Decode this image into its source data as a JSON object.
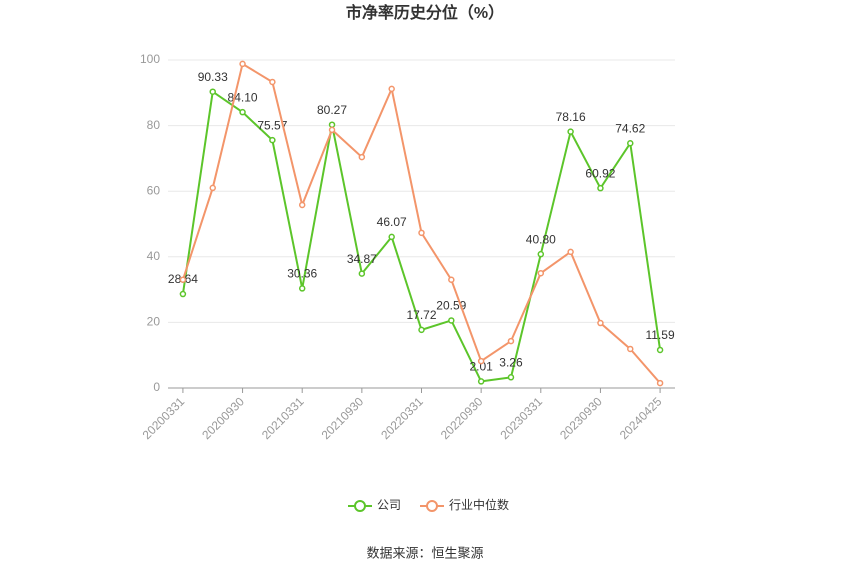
{
  "chart_data": {
    "type": "line",
    "title": "市净率历史分位（%）",
    "categories": [
      "20200331",
      null,
      "20200930",
      null,
      "20210331",
      null,
      "20210930",
      null,
      "20220331",
      null,
      "20220930",
      null,
      "20230331",
      null,
      "20230930",
      null,
      "20240425"
    ],
    "series": [
      {
        "name": "公司",
        "color": "#5cc52a",
        "values": [
          28.64,
          90.33,
          84.1,
          75.57,
          30.36,
          80.27,
          34.87,
          46.07,
          17.72,
          20.59,
          2.01,
          3.26,
          40.8,
          78.16,
          60.92,
          74.62,
          11.59
        ],
        "value_labels": [
          "28.64",
          "90.33",
          "84.10",
          "75.57",
          "30.36",
          "80.27",
          "34.87",
          "46.07",
          "17.72",
          "20.59",
          "2.01",
          "3.26",
          "40.80",
          "78.16",
          "60.92",
          "74.62",
          "11.59"
        ]
      },
      {
        "name": "行业中位数",
        "color": "#f3956a",
        "values": [
          33,
          61,
          98.8,
          93.3,
          55.8,
          78.7,
          70.4,
          91.2,
          47.3,
          33,
          8.2,
          14.3,
          35,
          41.5,
          19.8,
          11.9,
          1.5
        ]
      }
    ],
    "ylim": [
      0,
      100
    ],
    "yticks": [
      0,
      20,
      40,
      60,
      80,
      100
    ],
    "grid": true,
    "source": "数据来源：恒生聚源"
  }
}
